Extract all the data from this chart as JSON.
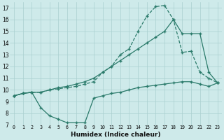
{
  "xlabel": "Humidex (Indice chaleur)",
  "background_color": "#ceeaea",
  "grid_color": "#aacfcf",
  "line_color": "#2a7a6a",
  "xlim": [
    -0.5,
    23.5
  ],
  "ylim": [
    7,
    17.5
  ],
  "xticks": [
    0,
    1,
    2,
    3,
    4,
    5,
    6,
    7,
    8,
    9,
    10,
    11,
    12,
    13,
    14,
    15,
    16,
    17,
    18,
    19,
    20,
    21,
    22,
    23
  ],
  "yticks": [
    7,
    8,
    9,
    10,
    11,
    12,
    13,
    14,
    15,
    16,
    17
  ],
  "line1_x": [
    0,
    1,
    2,
    3,
    4,
    5,
    6,
    7,
    8,
    9,
    10,
    11,
    12,
    13,
    14,
    15,
    16,
    17,
    18,
    19,
    20,
    21,
    22,
    23
  ],
  "line1_y": [
    9.5,
    9.7,
    9.8,
    9.8,
    10.0,
    10.1,
    10.2,
    10.3,
    10.5,
    10.7,
    11.5,
    12.0,
    13.0,
    13.5,
    15.0,
    16.3,
    17.1,
    17.2,
    16.0,
    13.2,
    13.3,
    11.5,
    11.0,
    10.6
  ],
  "line2_x": [
    0,
    1,
    2,
    3,
    4,
    5,
    6,
    7,
    8,
    9,
    10,
    11,
    12,
    13,
    14,
    15,
    16,
    17,
    18,
    19,
    20,
    21,
    22,
    23
  ],
  "line2_y": [
    9.5,
    9.7,
    9.8,
    9.8,
    10.0,
    10.2,
    10.3,
    10.5,
    10.7,
    11.0,
    11.5,
    12.0,
    12.5,
    13.0,
    13.5,
    14.0,
    14.5,
    15.0,
    16.0,
    14.8,
    14.8,
    14.8,
    11.5,
    10.6
  ],
  "line3_x": [
    0,
    1,
    2,
    3,
    4,
    5,
    6,
    7,
    8,
    9,
    10,
    11,
    12,
    13,
    14,
    15,
    16,
    17,
    18,
    19,
    20,
    21,
    22,
    23
  ],
  "line3_y": [
    9.5,
    9.7,
    9.8,
    8.5,
    7.8,
    7.5,
    7.2,
    7.2,
    7.2,
    9.3,
    9.5,
    9.7,
    9.8,
    10.0,
    10.2,
    10.3,
    10.4,
    10.5,
    10.6,
    10.7,
    10.7,
    10.5,
    10.3,
    10.6
  ]
}
